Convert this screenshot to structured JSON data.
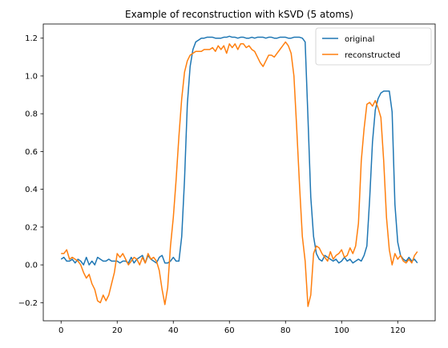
{
  "chart_data": {
    "type": "line",
    "title": "Example of reconstruction with kSVD (5 atoms)",
    "xlabel": "",
    "ylabel": "",
    "xlim": [
      -6.35,
      133.35
    ],
    "ylim": [
      -0.296,
      1.275
    ],
    "xticks": [
      0,
      20,
      40,
      60,
      80,
      100,
      120
    ],
    "yticks": [
      -0.2,
      0.0,
      0.2,
      0.4,
      0.6,
      0.8,
      1.0,
      1.2
    ],
    "xtick_labels": [
      "0",
      "20",
      "40",
      "60",
      "80",
      "100",
      "120"
    ],
    "ytick_labels": [
      "−0.2",
      "0.0",
      "0.2",
      "0.4",
      "0.6",
      "0.8",
      "1.0",
      "1.2"
    ],
    "grid": false,
    "legend_position": "top-right",
    "series": [
      {
        "name": "original",
        "color": "#1f77b4",
        "x_start": 0,
        "values": [
          0.03,
          0.04,
          0.02,
          0.02,
          0.03,
          0.01,
          0.03,
          0.02,
          0.0,
          0.04,
          0.0,
          0.02,
          0.0,
          0.04,
          0.03,
          0.02,
          0.02,
          0.03,
          0.02,
          0.02,
          0.02,
          0.01,
          0.02,
          0.02,
          0.01,
          0.04,
          0.01,
          0.03,
          0.04,
          0.05,
          0.01,
          0.05,
          0.03,
          0.02,
          0.01,
          0.04,
          0.05,
          0.01,
          0.01,
          0.02,
          0.04,
          0.02,
          0.02,
          0.15,
          0.45,
          0.85,
          1.05,
          1.14,
          1.18,
          1.19,
          1.2,
          1.2,
          1.205,
          1.205,
          1.205,
          1.2,
          1.2,
          1.2,
          1.205,
          1.205,
          1.21,
          1.205,
          1.205,
          1.2,
          1.205,
          1.205,
          1.2,
          1.2,
          1.205,
          1.2,
          1.205,
          1.205,
          1.205,
          1.2,
          1.205,
          1.205,
          1.2,
          1.2,
          1.205,
          1.205,
          1.205,
          1.2,
          1.2,
          1.205,
          1.205,
          1.205,
          1.2,
          1.18,
          0.78,
          0.36,
          0.15,
          0.06,
          0.03,
          0.02,
          0.05,
          0.04,
          0.03,
          0.02,
          0.03,
          0.01,
          0.02,
          0.04,
          0.02,
          0.03,
          0.01,
          0.02,
          0.03,
          0.02,
          0.05,
          0.1,
          0.35,
          0.65,
          0.82,
          0.88,
          0.91,
          0.92,
          0.92,
          0.92,
          0.81,
          0.32,
          0.12,
          0.05,
          0.03,
          0.02,
          0.04,
          0.02,
          0.03,
          0.01
        ]
      },
      {
        "name": "reconstructed",
        "color": "#ff7f0e",
        "x_start": 0,
        "values": [
          0.06,
          0.06,
          0.08,
          0.03,
          0.04,
          0.03,
          0.02,
          0.0,
          -0.04,
          -0.07,
          -0.05,
          -0.1,
          -0.13,
          -0.19,
          -0.2,
          -0.16,
          -0.19,
          -0.16,
          -0.1,
          -0.04,
          0.06,
          0.04,
          0.06,
          0.03,
          0.0,
          0.02,
          0.04,
          0.03,
          0.0,
          0.04,
          0.01,
          0.06,
          0.03,
          0.04,
          0.02,
          -0.03,
          -0.13,
          -0.21,
          -0.12,
          0.1,
          0.25,
          0.45,
          0.68,
          0.88,
          1.02,
          1.08,
          1.11,
          1.12,
          1.13,
          1.13,
          1.13,
          1.14,
          1.14,
          1.14,
          1.15,
          1.13,
          1.16,
          1.14,
          1.16,
          1.12,
          1.17,
          1.15,
          1.17,
          1.14,
          1.17,
          1.17,
          1.15,
          1.16,
          1.14,
          1.13,
          1.1,
          1.07,
          1.05,
          1.08,
          1.11,
          1.11,
          1.1,
          1.12,
          1.14,
          1.16,
          1.18,
          1.16,
          1.12,
          1.0,
          0.72,
          0.42,
          0.15,
          0.02,
          -0.22,
          -0.16,
          0.06,
          0.1,
          0.09,
          0.06,
          0.04,
          0.02,
          0.07,
          0.03,
          0.05,
          0.06,
          0.08,
          0.04,
          0.05,
          0.09,
          0.06,
          0.1,
          0.22,
          0.55,
          0.72,
          0.85,
          0.86,
          0.84,
          0.87,
          0.83,
          0.78,
          0.55,
          0.25,
          0.08,
          0.0,
          0.06,
          0.03,
          0.05,
          0.02,
          0.01,
          0.03,
          0.01,
          0.05,
          0.07
        ]
      }
    ]
  }
}
